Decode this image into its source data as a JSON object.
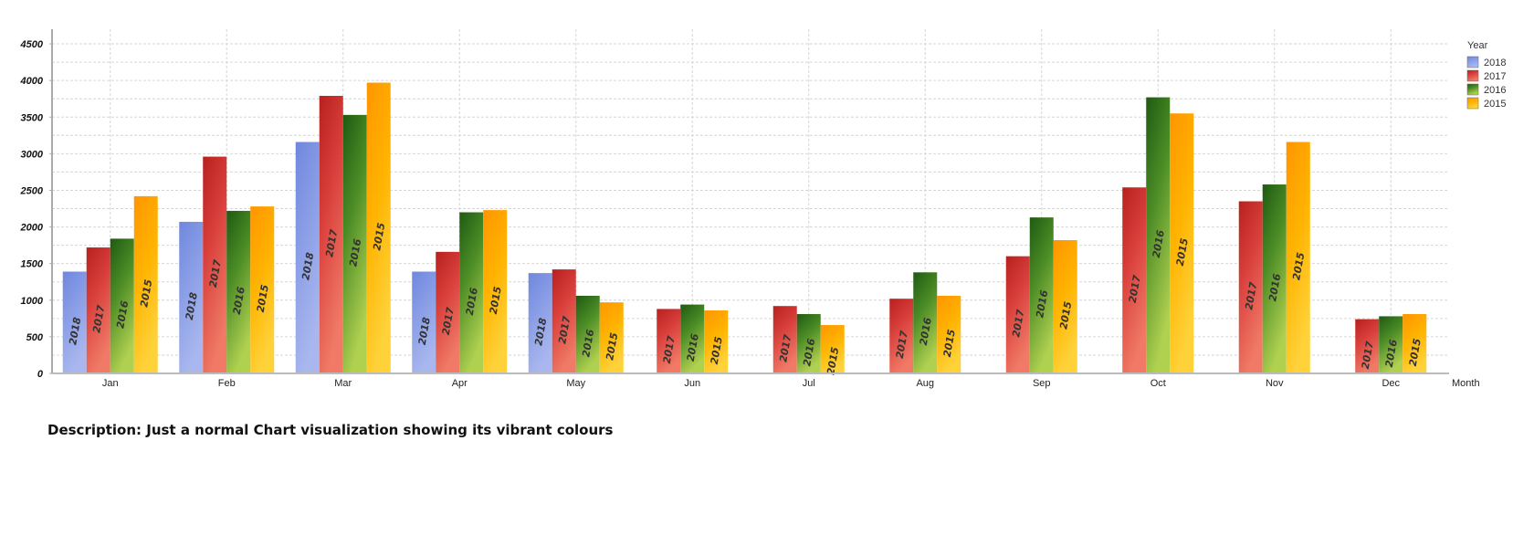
{
  "chart_data": {
    "type": "bar",
    "categories": [
      "Jan",
      "Feb",
      "Mar",
      "Apr",
      "May",
      "Jun",
      "Jul",
      "Aug",
      "Sep",
      "Oct",
      "Nov",
      "Dec"
    ],
    "series": [
      {
        "name": "2018",
        "color": "#8c9fe6",
        "values": [
          1390,
          2070,
          3160,
          1390,
          1370,
          null,
          null,
          null,
          null,
          null,
          null,
          null
        ]
      },
      {
        "name": "2017",
        "color": "#d9403c",
        "values": [
          1720,
          2960,
          3790,
          1660,
          1420,
          880,
          920,
          1020,
          1600,
          2540,
          2350,
          740
        ]
      },
      {
        "name": "2016",
        "color": "#5a9a2a",
        "values": [
          1840,
          2220,
          3530,
          2200,
          1060,
          940,
          810,
          1380,
          2130,
          3770,
          2580,
          780
        ]
      },
      {
        "name": "2015",
        "color": "#ffaa00",
        "values": [
          2420,
          2280,
          3970,
          2230,
          970,
          860,
          660,
          1060,
          1820,
          3550,
          3160,
          810
        ]
      }
    ],
    "ylim": [
      0,
      4700
    ],
    "yticks": [
      0,
      500,
      1000,
      1500,
      2000,
      2500,
      3000,
      3500,
      4000,
      4500
    ],
    "xlabel": "Month",
    "ylabel": "",
    "legend": {
      "title": "Year",
      "placement": "top-right"
    },
    "grid": true
  },
  "description": "Description: Just a normal Chart visualization showing its vibrant colours"
}
